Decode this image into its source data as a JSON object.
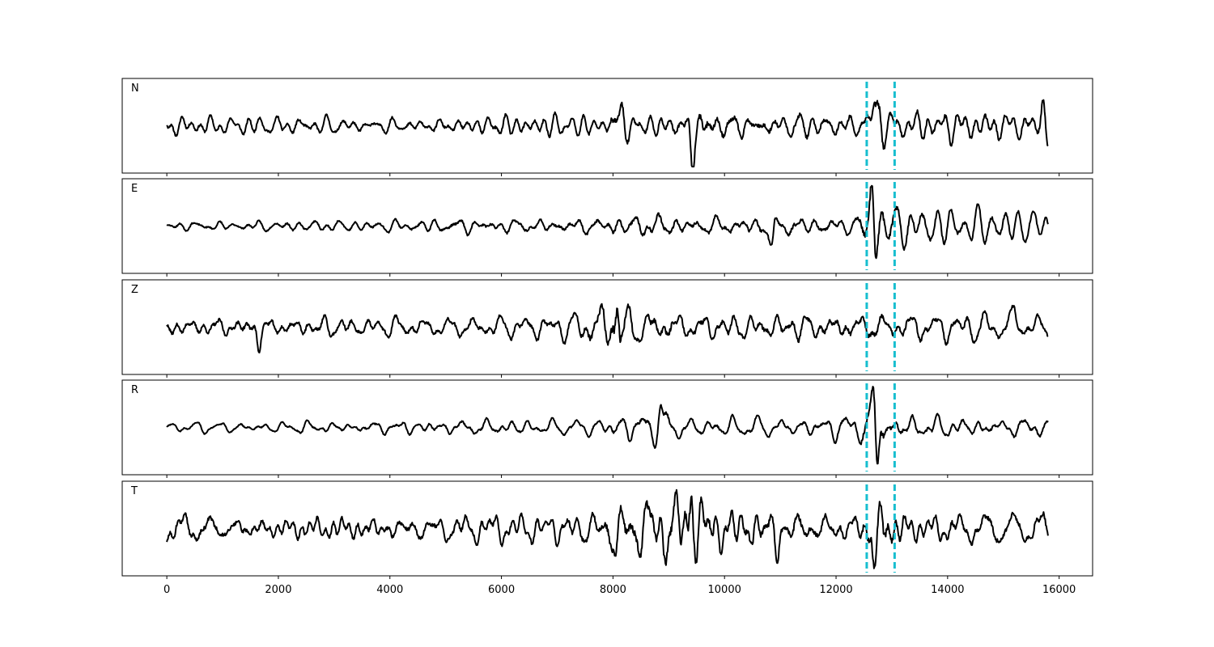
{
  "chart_data": {
    "type": "line",
    "title": "",
    "xlabel": "",
    "ylabel": "",
    "xlim": [
      -800,
      16600
    ],
    "ylim": [
      -1,
      1
    ],
    "grid": false,
    "legend": "none",
    "x_ticks": [
      0,
      2000,
      4000,
      6000,
      8000,
      10000,
      12000,
      14000,
      16000
    ],
    "x_tick_labels": [
      "0",
      "2000",
      "4000",
      "6000",
      "8000",
      "10000",
      "12000",
      "14000",
      "16000"
    ],
    "n_samples": 15800,
    "markers": [
      12550,
      13050
    ],
    "marker_color": "#17becf",
    "trace_color": "#000000",
    "series": [
      {
        "name": "N",
        "profile": [
          [
            0,
            0.28
          ],
          [
            5200,
            0.26
          ],
          [
            5700,
            0.34
          ],
          [
            7800,
            0.32
          ],
          [
            8050,
            0.72
          ],
          [
            8400,
            0.36
          ],
          [
            9300,
            0.46
          ],
          [
            9450,
            0.78
          ],
          [
            9800,
            0.55
          ],
          [
            11200,
            0.45
          ],
          [
            12400,
            0.3
          ],
          [
            12700,
            0.9
          ],
          [
            12900,
            0.45
          ],
          [
            15600,
            0.4
          ],
          [
            15800,
            0.6
          ]
        ],
        "bursts": [
          [
            8060,
            0.65,
            0.78
          ],
          [
            9420,
            -0.85,
            1.0
          ],
          [
            12680,
            0.88,
            1.0
          ],
          [
            15720,
            0.55,
            0.9
          ]
        ]
      },
      {
        "name": "E",
        "profile": [
          [
            0,
            0.16
          ],
          [
            1500,
            0.18
          ],
          [
            4000,
            0.22
          ],
          [
            5600,
            0.32
          ],
          [
            7300,
            0.28
          ],
          [
            7800,
            0.38
          ],
          [
            8800,
            0.5
          ],
          [
            9500,
            0.36
          ],
          [
            10200,
            0.45
          ],
          [
            10850,
            0.58
          ],
          [
            11500,
            0.4
          ],
          [
            12300,
            0.28
          ],
          [
            12650,
            0.95
          ],
          [
            13300,
            0.55
          ],
          [
            15800,
            0.38
          ]
        ],
        "bursts": [
          [
            10850,
            -0.6,
            1.0
          ],
          [
            12650,
            0.93,
            1.0
          ],
          [
            12700,
            -0.6,
            0.8
          ]
        ]
      },
      {
        "name": "Z",
        "profile": [
          [
            0,
            0.3
          ],
          [
            1600,
            0.34
          ],
          [
            2600,
            0.32
          ],
          [
            6000,
            0.3
          ],
          [
            7200,
            0.36
          ],
          [
            7600,
            0.5
          ],
          [
            8050,
            1.0
          ],
          [
            8300,
            0.6
          ],
          [
            9000,
            0.5
          ],
          [
            9800,
            0.42
          ],
          [
            12000,
            0.42
          ],
          [
            13000,
            0.4
          ],
          [
            14600,
            0.4
          ],
          [
            15800,
            0.3
          ]
        ],
        "bursts": [
          [
            8080,
            0.93,
            1.0
          ],
          [
            8120,
            -0.65,
            0.9
          ],
          [
            1650,
            -0.5,
            0.9
          ],
          [
            15200,
            0.5,
            0.9
          ]
        ]
      },
      {
        "name": "R",
        "profile": [
          [
            0,
            0.14
          ],
          [
            3000,
            0.2
          ],
          [
            5500,
            0.26
          ],
          [
            7200,
            0.24
          ],
          [
            7800,
            0.3
          ],
          [
            8800,
            0.45
          ],
          [
            9500,
            0.28
          ],
          [
            11400,
            0.3
          ],
          [
            12400,
            0.42
          ],
          [
            12700,
            0.95
          ],
          [
            13000,
            0.5
          ],
          [
            14000,
            0.35
          ],
          [
            15800,
            0.3
          ]
        ],
        "bursts": [
          [
            12680,
            0.9,
            1.0
          ],
          [
            12740,
            -0.95,
            1.0
          ],
          [
            8850,
            0.55,
            0.9
          ]
        ]
      },
      {
        "name": "T",
        "profile": [
          [
            0,
            0.4
          ],
          [
            600,
            0.48
          ],
          [
            1800,
            0.36
          ],
          [
            4400,
            0.42
          ],
          [
            6700,
            0.36
          ],
          [
            7700,
            0.52
          ],
          [
            8050,
            0.66
          ],
          [
            9400,
            0.95
          ],
          [
            9800,
            0.6
          ],
          [
            11000,
            0.55
          ],
          [
            12400,
            0.4
          ],
          [
            12700,
            0.8
          ],
          [
            13300,
            0.42
          ],
          [
            15800,
            0.5
          ]
        ],
        "bursts": [
          [
            9400,
            0.97,
            1.0
          ],
          [
            12680,
            -0.8,
            1.0
          ],
          [
            8060,
            -0.65,
            0.9
          ],
          [
            10950,
            -0.62,
            0.9
          ]
        ]
      }
    ]
  }
}
